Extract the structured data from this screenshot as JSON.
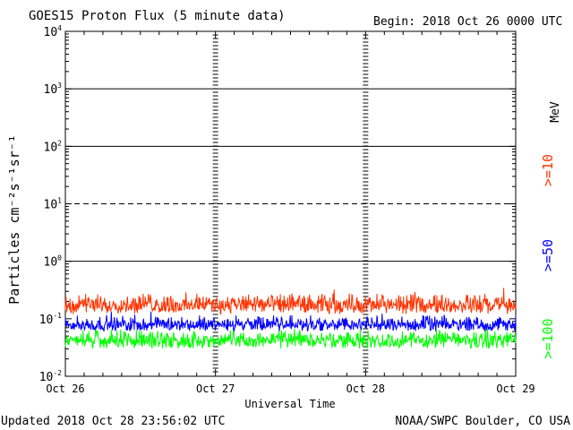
{
  "chart_data": {
    "type": "line",
    "title": "GOES15 Proton Flux (5 minute data)",
    "begin_label": "Begin: 2018 Oct 26 0000 UTC",
    "xlabel": "Universal Time",
    "ylabel": "Particles cm⁻²s⁻¹sr⁻¹",
    "unit_label": "MeV",
    "y_scale": "log",
    "ylim": [
      0.01,
      10000
    ],
    "x_categories": [
      "Oct 26",
      "Oct 27",
      "Oct 28",
      "Oct 29"
    ],
    "y_tick_labels": [
      {
        "base": "10",
        "exp": "4",
        "value": 10000
      },
      {
        "base": "10",
        "exp": "3",
        "value": 1000
      },
      {
        "base": "10",
        "exp": "2",
        "value": 100
      },
      {
        "base": "10",
        "exp": "1",
        "value": 10
      },
      {
        "base": "10",
        "exp": "0",
        "value": 1
      },
      {
        "base": "10",
        "exp": "-1",
        "value": 0.1
      },
      {
        "base": "10",
        "exp": "-2",
        "value": 0.01
      }
    ],
    "threshold_lines": [
      {
        "value": 1000,
        "style": "solid"
      },
      {
        "value": 100,
        "style": "solid"
      },
      {
        "value": 10,
        "style": "dashed"
      },
      {
        "value": 1,
        "style": "solid"
      }
    ],
    "series": [
      {
        "name": ">=10",
        "color": "#ff3300",
        "typical_range": [
          0.12,
          0.3
        ]
      },
      {
        "name": ">=50",
        "color": "#0000ff",
        "typical_range": [
          0.06,
          0.12
        ]
      },
      {
        "name": ">=100",
        "color": "#00ff00",
        "typical_range": [
          0.03,
          0.07
        ]
      }
    ],
    "grid": false
  },
  "footer": {
    "updated": "Updated 2018 Oct 28 23:56:02 UTC",
    "credit": "NOAA/SWPC Boulder, CO USA"
  }
}
